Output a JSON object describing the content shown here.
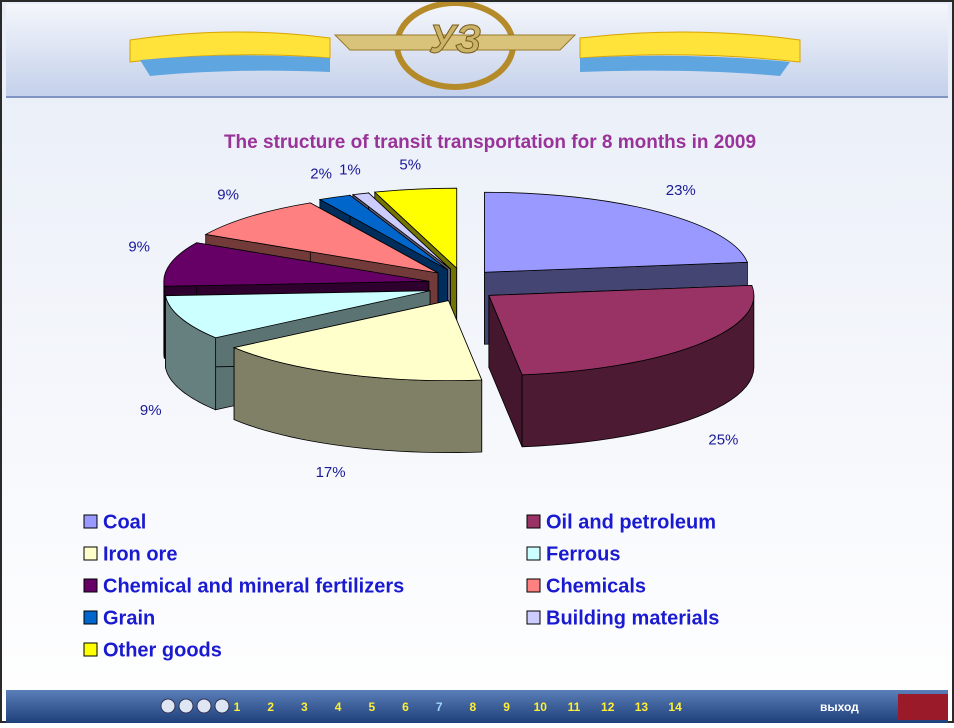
{
  "header": {
    "logo": "УЗ"
  },
  "chart_data": {
    "type": "pie",
    "title": "The structure of transit transportation for 8 months in 2009",
    "categories": [
      "Coal",
      "Oil and petroleum",
      "Iron ore",
      "Ferrous",
      "Chemical and mineral fertilizers",
      "Chemicals",
      "Grain",
      "Building materials",
      "Other goods"
    ],
    "values": [
      23,
      25,
      17,
      9,
      9,
      9,
      2,
      1,
      5
    ],
    "value_labels": [
      "23%",
      "25%",
      "17%",
      "9%",
      "9%",
      "9%",
      "2%",
      "1%",
      "5%"
    ],
    "colors": [
      "#9999ff",
      "#993366",
      "#ffffcc",
      "#ccffff",
      "#660066",
      "#ff8080",
      "#0066cc",
      "#ccccff",
      "#ffff00"
    ]
  },
  "navigation": {
    "pages": [
      "1",
      "2",
      "3",
      "4",
      "5",
      "6",
      "7",
      "8",
      "9",
      "10",
      "11",
      "12",
      "13",
      "14"
    ],
    "exit": "выход"
  }
}
